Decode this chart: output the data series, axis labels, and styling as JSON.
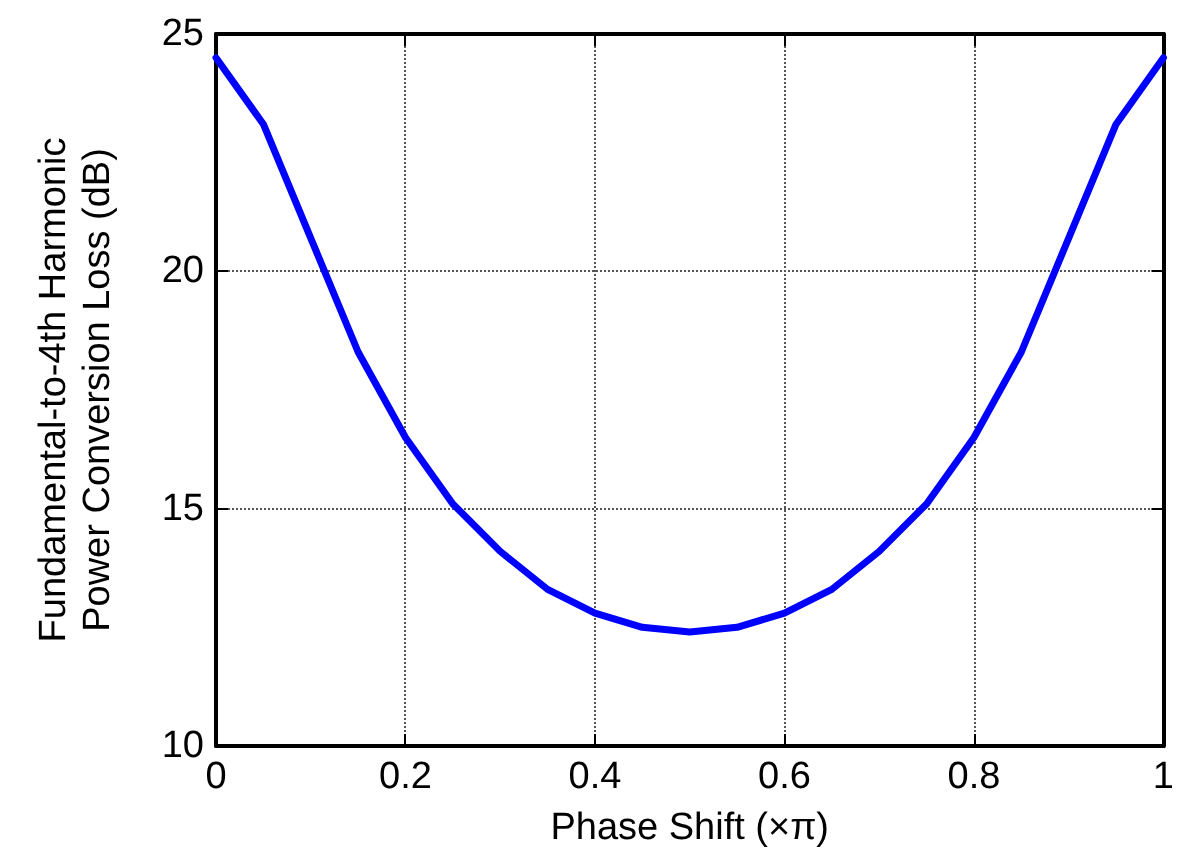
{
  "chart_data": {
    "type": "line",
    "xlabel": "Phase Shift (×π)",
    "ylabel": "Fundamental-to-4th Harmonic\nPower Conversion Loss (dB)",
    "x": [
      0,
      0.05,
      0.1,
      0.15,
      0.2,
      0.25,
      0.3,
      0.35,
      0.4,
      0.45,
      0.5,
      0.55,
      0.6,
      0.65,
      0.7,
      0.75,
      0.8,
      0.85,
      0.9,
      0.95,
      1
    ],
    "series": [
      {
        "color": "#0000ff",
        "values": [
          24.5,
          23.1,
          20.7,
          18.3,
          16.5,
          15.1,
          14.1,
          13.3,
          12.8,
          12.5,
          12.4,
          12.5,
          12.8,
          13.3,
          14.1,
          15.1,
          16.5,
          18.3,
          20.7,
          23.1,
          24.5
        ]
      }
    ],
    "xlim": [
      0,
      1
    ],
    "xticks": [
      0,
      0.2,
      0.4,
      0.6,
      0.8,
      1
    ],
    "ylim": [
      10,
      25
    ],
    "yticks": [
      10,
      15,
      20,
      25
    ],
    "grid": true,
    "marker": "none",
    "line_style": "solid"
  }
}
